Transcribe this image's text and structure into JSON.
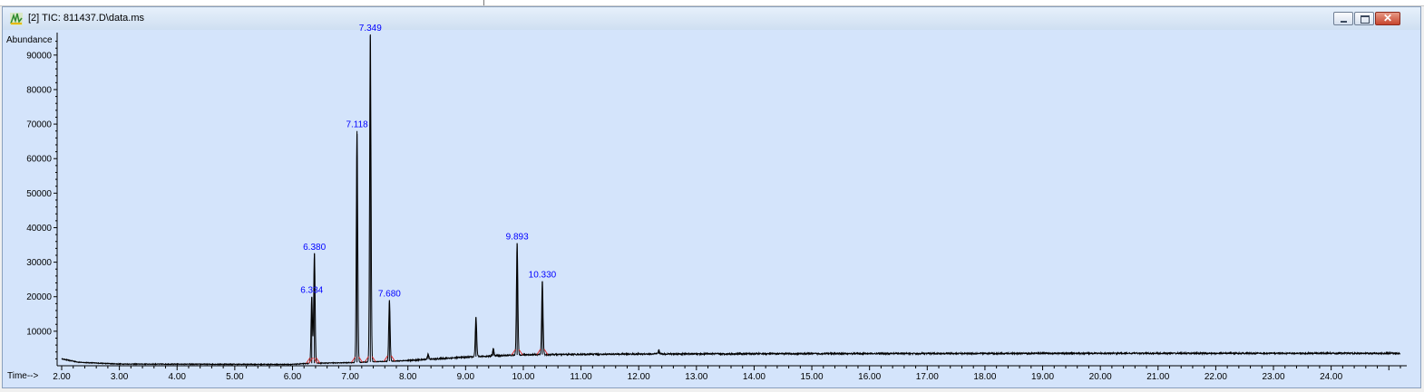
{
  "window": {
    "title": "[2] TIC: 811437.D\\data.ms",
    "controls": [
      "minimize-icon",
      "restore-icon",
      "close-icon"
    ]
  },
  "colors": {
    "plot_bg": "#d4e4fb",
    "trace": "#000000",
    "labels": "#0000ff",
    "baseline_marks": "#e03030"
  },
  "chart_data": {
    "type": "line",
    "ylabel": "Abundance",
    "xlabel": "Time-->",
    "xlim": [
      2.0,
      25.2
    ],
    "ylim": [
      0,
      95000
    ],
    "xticks": [
      2,
      3,
      4,
      5,
      6,
      7,
      8,
      9,
      10,
      11,
      12,
      13,
      14,
      15,
      16,
      17,
      18,
      19,
      20,
      21,
      22,
      23,
      24
    ],
    "xtick_labels": [
      "2.00",
      "3.00",
      "4.00",
      "5.00",
      "6.00",
      "7.00",
      "8.00",
      "9.00",
      "10.00",
      "11.00",
      "12.00",
      "13.00",
      "14.00",
      "15.00",
      "16.00",
      "17.00",
      "18.00",
      "19.00",
      "20.00",
      "21.00",
      "22.00",
      "23.00",
      "24.00"
    ],
    "yticks": [
      10000,
      20000,
      30000,
      40000,
      50000,
      60000,
      70000,
      80000,
      90000
    ],
    "ytick_labels": [
      "10000",
      "20000",
      "30000",
      "40000",
      "50000",
      "60000",
      "70000",
      "80000",
      "90000"
    ],
    "baseline": [
      [
        2.0,
        2000
      ],
      [
        2.3,
        1000
      ],
      [
        3.0,
        500
      ],
      [
        6.0,
        400
      ],
      [
        6.3,
        700
      ],
      [
        7.0,
        900
      ],
      [
        8.0,
        1500
      ],
      [
        9.0,
        2500
      ],
      [
        10.0,
        3200
      ],
      [
        12.0,
        3400
      ],
      [
        15.0,
        3500
      ],
      [
        20.0,
        3600
      ],
      [
        25.2,
        3600
      ]
    ],
    "peaks": [
      {
        "rt": 6.334,
        "height": 20000,
        "label": "6.334"
      },
      {
        "rt": 6.38,
        "height": 32500,
        "label": "6.380"
      },
      {
        "rt": 7.118,
        "height": 68000,
        "label": "7.118"
      },
      {
        "rt": 7.349,
        "height": 96000,
        "label": "7.349"
      },
      {
        "rt": 7.68,
        "height": 19000,
        "label": "7.680"
      },
      {
        "rt": 8.35,
        "height": 3500,
        "label": ""
      },
      {
        "rt": 9.18,
        "height": 14000,
        "label": ""
      },
      {
        "rt": 9.48,
        "height": 5000,
        "label": ""
      },
      {
        "rt": 9.893,
        "height": 35500,
        "label": "9.893"
      },
      {
        "rt": 10.33,
        "height": 24500,
        "label": "10.330"
      },
      {
        "rt": 12.35,
        "height": 4500,
        "label": ""
      }
    ]
  }
}
